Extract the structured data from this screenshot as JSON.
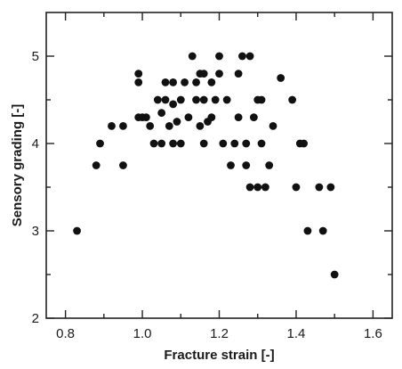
{
  "chart_data": {
    "type": "scatter",
    "title": "",
    "xlabel": "Fracture strain [-]",
    "ylabel": "Sensory grading [-]",
    "xlim": [
      0.75,
      1.65
    ],
    "ylim": [
      2,
      5.5
    ],
    "xticks": [
      0.8,
      1.0,
      1.2,
      1.4,
      1.6
    ],
    "xtick_labels": [
      "0.8",
      "1.0",
      "1.2",
      "1.4",
      "1.6"
    ],
    "xminor": [
      0.9,
      1.1,
      1.3,
      1.5
    ],
    "yticks": [
      2,
      3,
      4,
      5
    ],
    "ytick_labels": [
      "2",
      "3",
      "4",
      "5"
    ],
    "yminor": [
      2.5,
      3.5,
      4.5
    ],
    "grid": false,
    "marker_color": "#111111",
    "series": [
      {
        "points": [
          [
            0.83,
            3.0
          ],
          [
            0.88,
            3.75
          ],
          [
            0.89,
            4.0
          ],
          [
            0.92,
            4.2
          ],
          [
            0.95,
            3.75
          ],
          [
            0.95,
            4.2
          ],
          [
            0.99,
            4.3
          ],
          [
            0.99,
            4.7
          ],
          [
            0.99,
            4.8
          ],
          [
            1.0,
            4.3
          ],
          [
            1.01,
            4.3
          ],
          [
            1.02,
            4.2
          ],
          [
            1.03,
            4.0
          ],
          [
            1.04,
            4.5
          ],
          [
            1.05,
            4.0
          ],
          [
            1.05,
            4.35
          ],
          [
            1.06,
            4.7
          ],
          [
            1.06,
            4.5
          ],
          [
            1.07,
            4.2
          ],
          [
            1.08,
            4.0
          ],
          [
            1.08,
            4.45
          ],
          [
            1.08,
            4.7
          ],
          [
            1.09,
            4.25
          ],
          [
            1.1,
            4.0
          ],
          [
            1.1,
            4.5
          ],
          [
            1.11,
            4.7
          ],
          [
            1.12,
            4.3
          ],
          [
            1.13,
            5.0
          ],
          [
            1.14,
            4.5
          ],
          [
            1.14,
            4.7
          ],
          [
            1.15,
            4.2
          ],
          [
            1.15,
            4.8
          ],
          [
            1.16,
            4.0
          ],
          [
            1.16,
            4.5
          ],
          [
            1.16,
            4.8
          ],
          [
            1.17,
            4.25
          ],
          [
            1.18,
            4.3
          ],
          [
            1.18,
            4.7
          ],
          [
            1.19,
            4.5
          ],
          [
            1.2,
            5.0
          ],
          [
            1.2,
            4.8
          ],
          [
            1.21,
            4.0
          ],
          [
            1.22,
            4.5
          ],
          [
            1.23,
            3.75
          ],
          [
            1.24,
            4.0
          ],
          [
            1.25,
            4.3
          ],
          [
            1.25,
            4.8
          ],
          [
            1.26,
            5.0
          ],
          [
            1.27,
            3.75
          ],
          [
            1.27,
            4.0
          ],
          [
            1.28,
            5.0
          ],
          [
            1.28,
            3.5
          ],
          [
            1.29,
            4.3
          ],
          [
            1.3,
            4.5
          ],
          [
            1.3,
            3.5
          ],
          [
            1.31,
            4.5
          ],
          [
            1.31,
            4.0
          ],
          [
            1.32,
            3.5
          ],
          [
            1.33,
            3.75
          ],
          [
            1.34,
            4.2
          ],
          [
            1.36,
            4.75
          ],
          [
            1.39,
            4.5
          ],
          [
            1.4,
            3.5
          ],
          [
            1.41,
            4.0
          ],
          [
            1.42,
            4.0
          ],
          [
            1.43,
            3.0
          ],
          [
            1.46,
            3.5
          ],
          [
            1.47,
            3.0
          ],
          [
            1.49,
            3.5
          ],
          [
            1.5,
            2.5
          ]
        ]
      }
    ]
  }
}
